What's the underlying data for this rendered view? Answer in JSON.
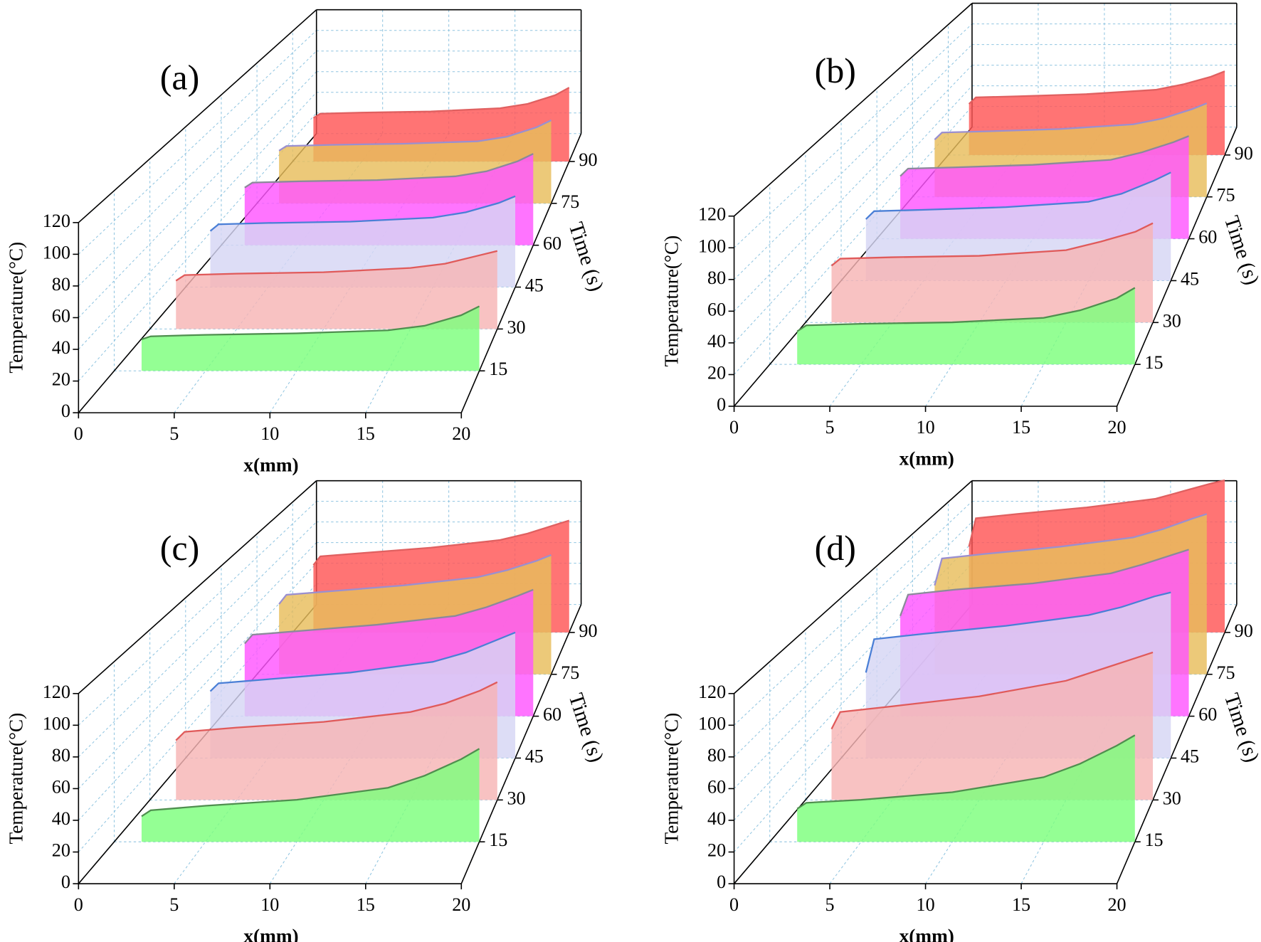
{
  "chart_data": [
    {
      "type": "waterfall3d",
      "title": "(a)",
      "x_label": "x(mm)",
      "y_label": "Temperature(°C)",
      "z_label": "Time (s)",
      "xlim": [
        0,
        20
      ],
      "xticks": [
        0,
        5,
        10,
        15,
        20
      ],
      "ylim": [
        0,
        120
      ],
      "yticks": [
        0,
        20,
        40,
        60,
        80,
        100,
        120
      ],
      "zlim": [
        0,
        100
      ],
      "zticks": [
        15,
        30,
        45,
        60,
        75,
        90
      ],
      "grid": true,
      "x": [
        1.5,
        2,
        5,
        10,
        15,
        17,
        19,
        20
      ],
      "series": [
        {
          "z": 15,
          "color": "#7dff7d",
          "line_color": "#4f8f4f",
          "values": [
            21,
            23,
            24,
            25,
            27,
            30,
            37,
            43
          ]
        },
        {
          "z": 30,
          "color": "#f7b4b4",
          "line_color": "#e05a5a",
          "values": [
            34,
            38,
            39,
            40,
            43,
            46,
            52,
            55
          ]
        },
        {
          "z": 45,
          "color": "#d6d6f4",
          "line_color": "#4a7fd6",
          "values": [
            42,
            47,
            48,
            49,
            52,
            56,
            63,
            68
          ]
        },
        {
          "z": 60,
          "color": "#ff55ff",
          "line_color": "#8a8a9a",
          "values": [
            46,
            50,
            51,
            52,
            55,
            59,
            67,
            73
          ]
        },
        {
          "z": 75,
          "color": "#e8bd5c",
          "line_color": "#9a8fd0",
          "values": [
            45,
            49,
            50,
            51,
            53,
            57,
            65,
            71
          ]
        },
        {
          "z": 90,
          "color": "#ff5555",
          "line_color": "#e06060",
          "values": [
            40,
            44,
            45,
            46,
            49,
            53,
            61,
            68
          ]
        }
      ],
      "offset": [
        0,
        0
      ]
    },
    {
      "type": "waterfall3d",
      "title": "(b)",
      "x_label": "x(mm)",
      "y_label": "Temperature(°C)",
      "z_label": "Time (s)",
      "xlim": [
        0,
        20
      ],
      "xticks": [
        0,
        5,
        10,
        15,
        20
      ],
      "ylim": [
        0,
        120
      ],
      "yticks": [
        0,
        20,
        40,
        60,
        80,
        100,
        120
      ],
      "zlim": [
        0,
        100
      ],
      "zticks": [
        15,
        30,
        45,
        60,
        75,
        90
      ],
      "grid": true,
      "x": [
        1.5,
        2,
        5,
        10,
        15,
        17,
        19,
        20
      ],
      "series": [
        {
          "z": 15,
          "color": "#7dff7d",
          "line_color": "#4f8f4f",
          "values": [
            22,
            26,
            27,
            28,
            31,
            36,
            44,
            51
          ]
        },
        {
          "z": 30,
          "color": "#f7b4b4",
          "line_color": "#e05a5a",
          "values": [
            40,
            45,
            46,
            47,
            51,
            57,
            64,
            70
          ]
        },
        {
          "z": 45,
          "color": "#d6d6f4",
          "line_color": "#4a7fd6",
          "values": [
            46,
            52,
            53,
            55,
            59,
            65,
            75,
            81
          ]
        },
        {
          "z": 60,
          "color": "#ff55ff",
          "line_color": "#8a8a9a",
          "values": [
            50,
            56,
            57,
            59,
            63,
            69,
            77,
            82
          ]
        },
        {
          "z": 75,
          "color": "#e8bd5c",
          "line_color": "#9a8fd0",
          "values": [
            49,
            55,
            56,
            58,
            62,
            67,
            75,
            80
          ]
        },
        {
          "z": 90,
          "color": "#ff5555",
          "line_color": "#e06060",
          "values": [
            47,
            53,
            54,
            56,
            60,
            65,
            72,
            77
          ]
        }
      ],
      "offset": [
        810,
        -8
      ]
    },
    {
      "type": "waterfall3d",
      "title": "(c)",
      "x_label": "x(mm)",
      "y_label": "Temperature(°C)",
      "z_label": "Time (s)",
      "xlim": [
        0,
        20
      ],
      "xticks": [
        0,
        5,
        10,
        15,
        20
      ],
      "ylim": [
        0,
        120
      ],
      "yticks": [
        0,
        20,
        40,
        60,
        80,
        100,
        120
      ],
      "zlim": [
        0,
        100
      ],
      "zticks": [
        15,
        30,
        45,
        60,
        75,
        90
      ],
      "grid": true,
      "x": [
        1.5,
        2,
        5,
        10,
        15,
        17,
        19,
        20
      ],
      "series": [
        {
          "z": 15,
          "color": "#7dff7d",
          "line_color": "#4f8f4f",
          "values": [
            17,
            21,
            24,
            28,
            36,
            44,
            55,
            62
          ]
        },
        {
          "z": 30,
          "color": "#f7b4b4",
          "line_color": "#e05a5a",
          "values": [
            42,
            48,
            51,
            55,
            62,
            68,
            77,
            83
          ]
        },
        {
          "z": 45,
          "color": "#d6d6f4",
          "line_color": "#4a7fd6",
          "values": [
            50,
            56,
            59,
            64,
            72,
            79,
            89,
            94
          ]
        },
        {
          "z": 60,
          "color": "#ff55ff",
          "line_color": "#8a8a9a",
          "values": [
            58,
            65,
            68,
            73,
            80,
            87,
            96,
            101
          ]
        },
        {
          "z": 75,
          "color": "#e8bd5c",
          "line_color": "#9a8fd0",
          "values": [
            60,
            68,
            71,
            76,
            83,
            89,
            97,
            102
          ]
        },
        {
          "z": 90,
          "color": "#ff5555",
          "line_color": "#e06060",
          "values": [
            62,
            70,
            73,
            78,
            85,
            91,
            99,
            103
          ]
        }
      ],
      "offset": [
        0,
        582
      ]
    },
    {
      "type": "waterfall3d",
      "title": "(d)",
      "x_label": "x(mm)",
      "y_label": "Temperature(°C)",
      "z_label": "Time (s)",
      "xlim": [
        0,
        20
      ],
      "xticks": [
        0,
        5,
        10,
        15,
        20
      ],
      "ylim": [
        0,
        120
      ],
      "yticks": [
        0,
        20,
        40,
        60,
        80,
        100,
        120
      ],
      "zlim": [
        0,
        100
      ],
      "zticks": [
        15,
        30,
        45,
        60,
        75,
        90
      ],
      "grid": true,
      "x": [
        1.5,
        2,
        5,
        10,
        15,
        17,
        19,
        20
      ],
      "series": [
        {
          "z": 15,
          "color": "#7dff7d",
          "line_color": "#4f8f4f",
          "values": [
            22,
            26,
            28,
            33,
            43,
            52,
            64,
            71
          ]
        },
        {
          "z": 30,
          "color": "#f7b4b4",
          "line_color": "#e05a5a",
          "values": [
            50,
            62,
            66,
            73,
            84,
            92,
            100,
            104
          ]
        },
        {
          "z": 45,
          "color": "#d6d6f4",
          "line_color": "#4a7fd6",
          "values": [
            64,
            89,
            93,
            99,
            107,
            113,
            121,
            124
          ]
        },
        {
          "z": 60,
          "color": "#ff55ff",
          "line_color": "#8a8a9a",
          "values": [
            80,
            97,
            101,
            106,
            114,
            121,
            129,
            133
          ]
        },
        {
          "z": 75,
          "color": "#e8bd5c",
          "line_color": "#9a8fd0",
          "values": [
            76,
            99,
            103,
            109,
            117,
            124,
            133,
            137
          ]
        },
        {
          "z": 90,
          "color": "#ff5555",
          "line_color": "#e06060",
          "values": [
            79,
            105,
            109,
            115,
            123,
            130,
            137,
            140
          ]
        }
      ],
      "offset": [
        810,
        582
      ]
    }
  ]
}
